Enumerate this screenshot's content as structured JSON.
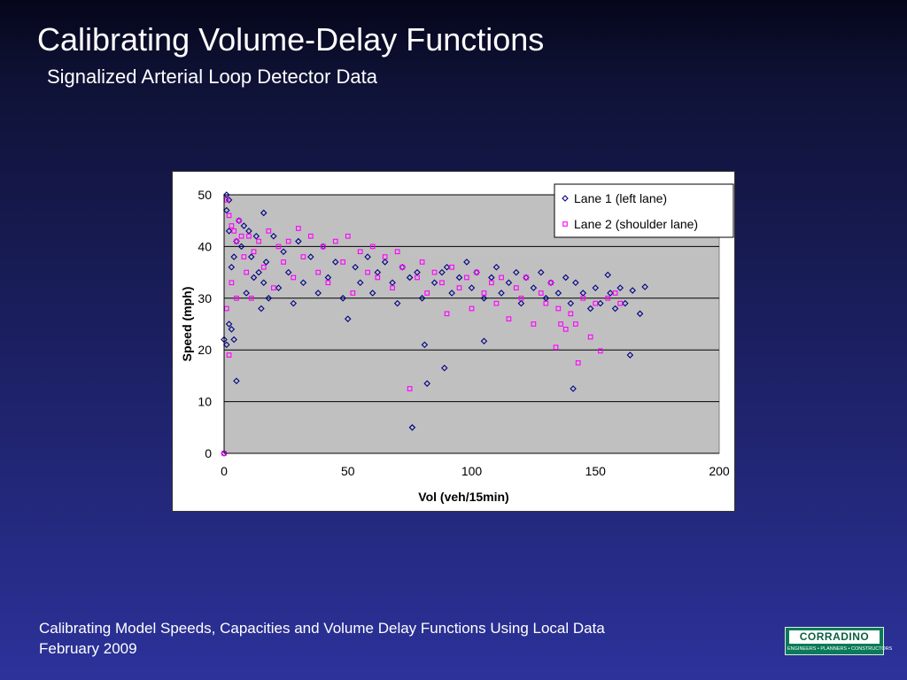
{
  "slide": {
    "title": "Calibrating Volume-Delay Functions",
    "subtitle": "Signalized Arterial Loop Detector Data"
  },
  "footer": {
    "line1": "Calibrating Model Speeds, Capacities and Volume Delay Functions Using Local Data",
    "line2": "February 2009"
  },
  "logo": {
    "name": "CORRADINO",
    "tagline": "ENGINEERS • PLANNERS • CONSTRUCTORS"
  },
  "chart_data": {
    "type": "scatter",
    "title": "",
    "xlabel": "Vol (veh/15min)",
    "ylabel": "Speed (mph)",
    "xlim": [
      0,
      200
    ],
    "ylim": [
      0,
      50
    ],
    "xticks": [
      0,
      50,
      100,
      150,
      200
    ],
    "yticks": [
      0,
      10,
      20,
      30,
      40,
      50
    ],
    "xtick_labels": [
      "0",
      "50",
      "100",
      "150",
      "200"
    ],
    "ytick_labels": [
      "0",
      "10",
      "20",
      "30",
      "40",
      "50"
    ],
    "grid": "horizontal",
    "plot_background": "#c0c0c0",
    "legend_position": "top-right",
    "series": [
      {
        "name": "Lane 1 (left lane)",
        "marker": "diamond",
        "color": "#000080",
        "x": [
          0,
          0,
          1,
          1,
          1,
          2,
          2,
          2,
          3,
          3,
          4,
          4,
          5,
          5,
          6,
          7,
          8,
          9,
          10,
          11,
          12,
          13,
          14,
          15,
          16,
          16,
          17,
          18,
          20,
          22,
          24,
          26,
          28,
          30,
          32,
          35,
          38,
          40,
          42,
          45,
          48,
          50,
          53,
          55,
          58,
          60,
          62,
          65,
          68,
          70,
          72,
          75,
          76,
          78,
          80,
          81,
          82,
          85,
          88,
          89,
          90,
          92,
          95,
          98,
          100,
          102,
          105,
          105,
          108,
          110,
          112,
          115,
          118,
          120,
          122,
          125,
          128,
          130,
          132,
          135,
          138,
          140,
          141,
          142,
          145,
          148,
          150,
          152,
          155,
          156,
          158,
          160,
          162,
          164,
          165,
          168,
          170
        ],
        "y": [
          0,
          22,
          50,
          47,
          21,
          49,
          43,
          25,
          24,
          36,
          22,
          38,
          14,
          41,
          45,
          40,
          44,
          31,
          43,
          38,
          34,
          42,
          35,
          28,
          46.5,
          33,
          37,
          30,
          42,
          32,
          39,
          35,
          29,
          41,
          33,
          38,
          31,
          40,
          34,
          37,
          30,
          26,
          36,
          33,
          38,
          31,
          35,
          37,
          33,
          29,
          36,
          34,
          5,
          35,
          30,
          21,
          13.5,
          33,
          35,
          16.5,
          36,
          31,
          34,
          37,
          32,
          35,
          21.7,
          30,
          34,
          36,
          31,
          33,
          35,
          29,
          34,
          32,
          35,
          30,
          33,
          31,
          34,
          29,
          12.5,
          33,
          31,
          28,
          32,
          29,
          34.5,
          31,
          28,
          32,
          29,
          19,
          31.5,
          27,
          32.2
        ]
      },
      {
        "name": "Lane 2 (shoulder lane)",
        "marker": "square",
        "color": "#ff00ff",
        "x": [
          0,
          1,
          1,
          2,
          2,
          3,
          3,
          4,
          5,
          5,
          6,
          7,
          8,
          9,
          10,
          11,
          12,
          14,
          16,
          18,
          20,
          22,
          24,
          26,
          28,
          30,
          32,
          35,
          38,
          40,
          42,
          45,
          48,
          50,
          52,
          55,
          58,
          60,
          62,
          65,
          68,
          70,
          72,
          75,
          78,
          80,
          82,
          85,
          88,
          90,
          92,
          95,
          98,
          100,
          102,
          105,
          108,
          110,
          112,
          115,
          118,
          120,
          122,
          125,
          128,
          130,
          132,
          134,
          135,
          136,
          138,
          140,
          142,
          143,
          145,
          148,
          150,
          152,
          155,
          158,
          160
        ],
        "y": [
          0,
          49,
          28,
          46,
          19,
          44,
          33,
          43,
          41,
          30,
          45,
          42,
          38,
          35,
          42,
          30,
          39,
          41,
          36,
          43,
          32,
          40,
          37,
          41,
          34,
          43.5,
          38,
          42,
          35,
          40,
          33,
          41,
          37,
          42,
          31,
          39,
          35,
          40,
          34,
          38,
          32,
          39,
          36,
          12.5,
          34,
          37,
          31,
          35,
          33,
          27,
          36,
          32,
          34,
          28,
          35,
          31,
          33,
          29,
          34,
          26,
          32,
          30,
          34,
          25,
          31,
          29,
          33,
          20.5,
          28,
          25,
          24,
          27,
          25,
          17.5,
          30,
          22.5,
          29,
          19.8,
          30,
          31,
          29
        ]
      }
    ]
  }
}
